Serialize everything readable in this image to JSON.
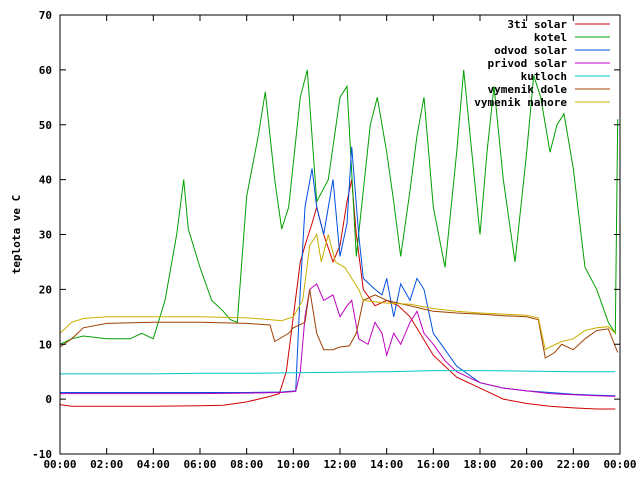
{
  "chart_data": {
    "type": "line",
    "title": "",
    "xlabel": "",
    "ylabel": "teplota ve C",
    "xlim": [
      0,
      24
    ],
    "ylim": [
      -10,
      70
    ],
    "x_ticks": [
      {
        "value": 0,
        "label": "00:00"
      },
      {
        "value": 2,
        "label": "02:00"
      },
      {
        "value": 4,
        "label": "04:00"
      },
      {
        "value": 6,
        "label": "06:00"
      },
      {
        "value": 8,
        "label": "08:00"
      },
      {
        "value": 10,
        "label": "10:00"
      },
      {
        "value": 12,
        "label": "12:00"
      },
      {
        "value": 14,
        "label": "14:00"
      },
      {
        "value": 16,
        "label": "16:00"
      },
      {
        "value": 18,
        "label": "18:00"
      },
      {
        "value": 20,
        "label": "20:00"
      },
      {
        "value": 22,
        "label": "22:00"
      },
      {
        "value": 24,
        "label": "00:00"
      }
    ],
    "y_ticks": [
      {
        "value": -10,
        "label": "-10"
      },
      {
        "value": 0,
        "label": "0"
      },
      {
        "value": 10,
        "label": "10"
      },
      {
        "value": 20,
        "label": "20"
      },
      {
        "value": 30,
        "label": "30"
      },
      {
        "value": 40,
        "label": "40"
      },
      {
        "value": 50,
        "label": "50"
      },
      {
        "value": 60,
        "label": "60"
      },
      {
        "value": 70,
        "label": "70"
      }
    ],
    "grid": false,
    "legend_position": "top-right",
    "series": [
      {
        "name": "3ti solar",
        "color": "#d00000",
        "points": [
          [
            0,
            -1
          ],
          [
            0.5,
            -1.3
          ],
          [
            2,
            -1.3
          ],
          [
            4,
            -1.3
          ],
          [
            6,
            -1.2
          ],
          [
            7,
            -1.1
          ],
          [
            8,
            -0.5
          ],
          [
            9,
            0.5
          ],
          [
            9.4,
            1
          ],
          [
            9.7,
            5
          ],
          [
            10,
            15
          ],
          [
            10.3,
            25
          ],
          [
            10.5,
            28
          ],
          [
            10.8,
            32
          ],
          [
            11,
            35
          ],
          [
            11.3,
            30
          ],
          [
            11.7,
            25
          ],
          [
            12,
            28
          ],
          [
            12.3,
            36
          ],
          [
            12.5,
            40
          ],
          [
            12.7,
            30
          ],
          [
            13,
            20
          ],
          [
            13.5,
            17
          ],
          [
            14,
            18
          ],
          [
            14.5,
            17
          ],
          [
            15,
            15
          ],
          [
            16,
            8
          ],
          [
            17,
            4
          ],
          [
            18,
            2
          ],
          [
            19,
            0
          ],
          [
            20,
            -0.8
          ],
          [
            21,
            -1.3
          ],
          [
            22,
            -1.6
          ],
          [
            23,
            -1.8
          ],
          [
            23.8,
            -1.8
          ]
        ]
      },
      {
        "name": "kotel",
        "color": "#00a000",
        "points": [
          [
            0,
            10
          ],
          [
            0.5,
            11
          ],
          [
            1,
            11.5
          ],
          [
            2,
            11
          ],
          [
            3,
            11
          ],
          [
            3.5,
            12
          ],
          [
            4,
            11
          ],
          [
            4.5,
            18
          ],
          [
            5,
            30
          ],
          [
            5.3,
            40
          ],
          [
            5.5,
            31
          ],
          [
            6,
            24
          ],
          [
            6.5,
            18
          ],
          [
            7,
            16
          ],
          [
            7.3,
            14.5
          ],
          [
            7.6,
            14
          ],
          [
            8,
            37
          ],
          [
            8.5,
            48
          ],
          [
            8.8,
            56
          ],
          [
            9.2,
            40
          ],
          [
            9.5,
            31
          ],
          [
            9.8,
            35
          ],
          [
            10,
            43
          ],
          [
            10.3,
            55
          ],
          [
            10.6,
            60
          ],
          [
            11,
            36
          ],
          [
            11.5,
            40
          ],
          [
            12,
            55
          ],
          [
            12.3,
            57
          ],
          [
            12.7,
            26
          ],
          [
            13,
            38
          ],
          [
            13.3,
            50
          ],
          [
            13.6,
            55
          ],
          [
            14,
            45
          ],
          [
            14.3,
            36
          ],
          [
            14.6,
            26
          ],
          [
            15,
            38
          ],
          [
            15.3,
            48
          ],
          [
            15.6,
            55
          ],
          [
            16,
            35
          ],
          [
            16.5,
            24
          ],
          [
            17,
            45
          ],
          [
            17.3,
            60
          ],
          [
            17.6,
            47
          ],
          [
            18,
            30
          ],
          [
            18.3,
            45
          ],
          [
            18.6,
            57
          ],
          [
            19,
            40
          ],
          [
            19.5,
            25
          ],
          [
            20,
            45
          ],
          [
            20.3,
            59
          ],
          [
            20.6,
            55
          ],
          [
            21,
            45
          ],
          [
            21.3,
            50
          ],
          [
            21.6,
            52
          ],
          [
            22,
            42
          ],
          [
            22.5,
            24
          ],
          [
            23,
            20
          ],
          [
            23.5,
            14
          ],
          [
            23.8,
            12
          ],
          [
            23.9,
            51
          ]
        ]
      },
      {
        "name": "odvod solar",
        "color": "#0050e0",
        "points": [
          [
            0,
            1.2
          ],
          [
            2,
            1.2
          ],
          [
            4,
            1.2
          ],
          [
            6,
            1.2
          ],
          [
            8,
            1.2
          ],
          [
            9.5,
            1.3
          ],
          [
            10.1,
            1.5
          ],
          [
            10.3,
            20
          ],
          [
            10.5,
            35
          ],
          [
            10.8,
            42
          ],
          [
            11,
            35
          ],
          [
            11.3,
            30
          ],
          [
            11.7,
            40
          ],
          [
            12,
            26
          ],
          [
            12.3,
            32
          ],
          [
            12.5,
            46
          ],
          [
            12.8,
            30
          ],
          [
            13,
            22
          ],
          [
            13.5,
            20
          ],
          [
            13.8,
            19
          ],
          [
            14,
            22
          ],
          [
            14.3,
            15
          ],
          [
            14.6,
            21
          ],
          [
            15,
            18
          ],
          [
            15.3,
            22
          ],
          [
            15.6,
            20
          ],
          [
            16,
            12
          ],
          [
            16.5,
            9
          ],
          [
            17,
            6
          ],
          [
            18,
            3
          ],
          [
            19,
            2
          ],
          [
            20,
            1.5
          ],
          [
            21,
            1.2
          ],
          [
            22,
            0.9
          ],
          [
            23,
            0.7
          ],
          [
            23.8,
            0.6
          ]
        ]
      },
      {
        "name": "privod solar",
        "color": "#c000c0",
        "points": [
          [
            0,
            1
          ],
          [
            2,
            1
          ],
          [
            4,
            1
          ],
          [
            6,
            1
          ],
          [
            8,
            1.1
          ],
          [
            9.5,
            1.2
          ],
          [
            10.1,
            1.4
          ],
          [
            10.3,
            5
          ],
          [
            10.5,
            15
          ],
          [
            10.7,
            20
          ],
          [
            11,
            21
          ],
          [
            11.3,
            18
          ],
          [
            11.7,
            19
          ],
          [
            12,
            15
          ],
          [
            12.3,
            17
          ],
          [
            12.5,
            18
          ],
          [
            12.8,
            11
          ],
          [
            13.2,
            10
          ],
          [
            13.5,
            14
          ],
          [
            13.8,
            12
          ],
          [
            14,
            8
          ],
          [
            14.3,
            12
          ],
          [
            14.6,
            10
          ],
          [
            15,
            14
          ],
          [
            15.3,
            16
          ],
          [
            15.6,
            12
          ],
          [
            16,
            10
          ],
          [
            16.5,
            7
          ],
          [
            17,
            5
          ],
          [
            18,
            3
          ],
          [
            19,
            2
          ],
          [
            20,
            1.5
          ],
          [
            21,
            1
          ],
          [
            22,
            0.8
          ],
          [
            23,
            0.6
          ],
          [
            23.8,
            0.5
          ]
        ]
      },
      {
        "name": "kutloch",
        "color": "#00c8c8",
        "points": [
          [
            0,
            4.6
          ],
          [
            2,
            4.6
          ],
          [
            4,
            4.6
          ],
          [
            6,
            4.7
          ],
          [
            8,
            4.7
          ],
          [
            10,
            4.8
          ],
          [
            12,
            4.9
          ],
          [
            14,
            5
          ],
          [
            16,
            5.2
          ],
          [
            18,
            5.2
          ],
          [
            20,
            5.1
          ],
          [
            22,
            5
          ],
          [
            23.8,
            5
          ]
        ]
      },
      {
        "name": "vymenik dole",
        "color": "#a04000",
        "points": [
          [
            0,
            9.5
          ],
          [
            0.5,
            11
          ],
          [
            1,
            13
          ],
          [
            2,
            13.8
          ],
          [
            4,
            14
          ],
          [
            6,
            14
          ],
          [
            8,
            13.8
          ],
          [
            9,
            13.5
          ],
          [
            9.2,
            10.5
          ],
          [
            9.8,
            12
          ],
          [
            10,
            13
          ],
          [
            10.5,
            14
          ],
          [
            10.7,
            20
          ],
          [
            11,
            12
          ],
          [
            11.3,
            9
          ],
          [
            11.7,
            9
          ],
          [
            12,
            9.5
          ],
          [
            12.4,
            9.7
          ],
          [
            12.7,
            12
          ],
          [
            13,
            18
          ],
          [
            13.5,
            19
          ],
          [
            14,
            18
          ],
          [
            14.5,
            17.5
          ],
          [
            15,
            17
          ],
          [
            15.5,
            16.5
          ],
          [
            16,
            16
          ],
          [
            17,
            15.7
          ],
          [
            18,
            15.5
          ],
          [
            19,
            15.2
          ],
          [
            20,
            15
          ],
          [
            20.5,
            14.5
          ],
          [
            20.8,
            7.5
          ],
          [
            21.2,
            8.5
          ],
          [
            21.5,
            10
          ],
          [
            22,
            9
          ],
          [
            22.5,
            11
          ],
          [
            23,
            12.5
          ],
          [
            23.5,
            12.8
          ],
          [
            23.9,
            8.5
          ]
        ]
      },
      {
        "name": "vymenik nahore",
        "color": "#c8b000",
        "points": [
          [
            0,
            12
          ],
          [
            0.5,
            14
          ],
          [
            1,
            14.7
          ],
          [
            2,
            15
          ],
          [
            4,
            15
          ],
          [
            6,
            15
          ],
          [
            8,
            14.8
          ],
          [
            9,
            14.5
          ],
          [
            9.5,
            14.3
          ],
          [
            10,
            15
          ],
          [
            10.4,
            18
          ],
          [
            10.7,
            28
          ],
          [
            11,
            30
          ],
          [
            11.2,
            25
          ],
          [
            11.5,
            30
          ],
          [
            11.8,
            25
          ],
          [
            12.2,
            24
          ],
          [
            12.5,
            22
          ],
          [
            12.8,
            20
          ],
          [
            13,
            18
          ],
          [
            14,
            17.5
          ],
          [
            15,
            17.3
          ],
          [
            16,
            16.5
          ],
          [
            17,
            16
          ],
          [
            18,
            15.7
          ],
          [
            19,
            15.5
          ],
          [
            20,
            15.3
          ],
          [
            20.5,
            14.8
          ],
          [
            20.8,
            9
          ],
          [
            21,
            9.5
          ],
          [
            21.5,
            10.5
          ],
          [
            22,
            11
          ],
          [
            22.5,
            12.5
          ],
          [
            23,
            13
          ],
          [
            23.5,
            13.2
          ],
          [
            23.8,
            12
          ]
        ]
      }
    ]
  }
}
